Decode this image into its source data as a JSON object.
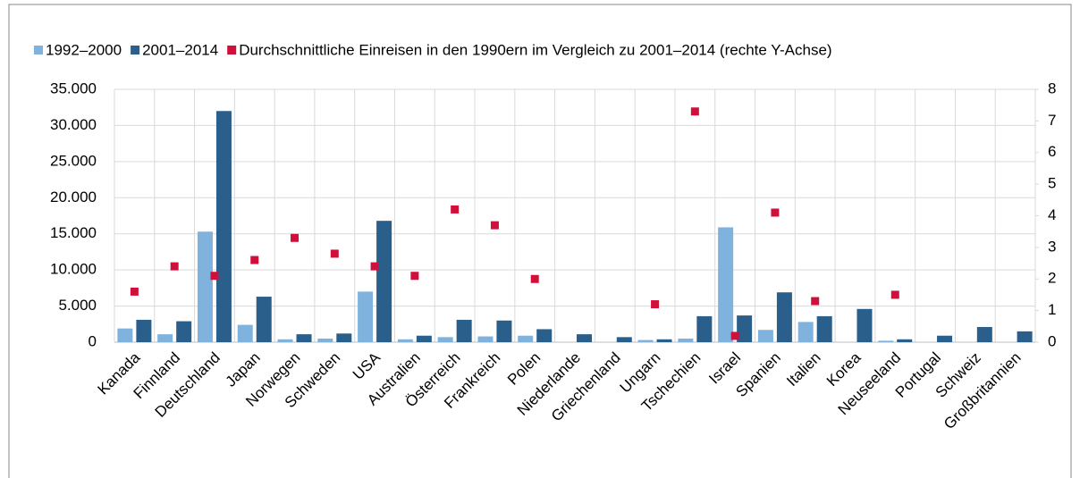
{
  "chart_data": {
    "type": "bar",
    "categories": [
      "Kanada",
      "Finnland",
      "Deutschland",
      "Japan",
      "Norwegen",
      "Schweden",
      "USA",
      "Australien",
      "Österreich",
      "Frankreich",
      "Polen",
      "Niederlande",
      "Griechenland",
      "Ungarn",
      "Tschechien",
      "Israel",
      "Spanien",
      "Italien",
      "Korea",
      "Neuseeland",
      "Portugal",
      "Schweiz",
      "Großbritannien"
    ],
    "series": [
      {
        "name": "1992–2000",
        "color": "#7fb3de",
        "values": [
          1900,
          1100,
          15300,
          2400,
          400,
          500,
          7000,
          400,
          700,
          800,
          900,
          null,
          null,
          300,
          500,
          15900,
          1700,
          2800,
          null,
          200,
          null,
          null,
          null
        ]
      },
      {
        "name": "2001–2014",
        "color": "#2b5f8b",
        "values": [
          3100,
          2900,
          32000,
          6300,
          1100,
          1200,
          16800,
          900,
          3100,
          3000,
          1800,
          1100,
          700,
          400,
          3600,
          3700,
          6900,
          3600,
          4600,
          400,
          900,
          2100,
          1500
        ]
      },
      {
        "name": "Durchschnittliche Einreisen in den 1990ern im Vergleich zu 2001–2014 (rechte Y-Achse)",
        "color": "#d0103a",
        "axis": "y2",
        "type": "scatter",
        "values": [
          1.6,
          2.4,
          2.1,
          2.6,
          3.3,
          2.8,
          2.4,
          2.1,
          4.2,
          3.7,
          2.0,
          null,
          null,
          1.2,
          7.3,
          0.2,
          4.1,
          1.3,
          null,
          1.5,
          null,
          null,
          null
        ]
      }
    ],
    "ylim": [
      0,
      35000
    ],
    "yticks": [
      0,
      {
        "value": 5000,
        "label": "5.000"
      },
      {
        "value": 10000,
        "label": "10.000"
      },
      {
        "value": 15000,
        "label": "15.000"
      },
      {
        "value": 20000,
        "label": "20.000"
      },
      {
        "value": 25000,
        "label": "25.000"
      },
      {
        "value": 30000,
        "label": "30.000"
      },
      {
        "value": 35000,
        "label": "35.000"
      }
    ],
    "y2lim": [
      0,
      8
    ],
    "y2ticks": [
      0,
      1,
      2,
      3,
      4,
      5,
      6,
      7,
      8
    ],
    "grid": true
  }
}
